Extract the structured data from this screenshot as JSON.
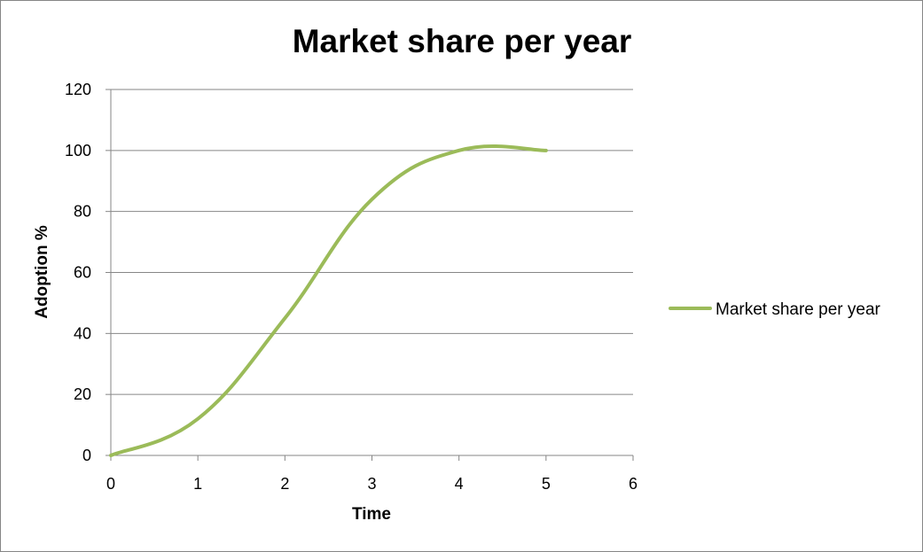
{
  "chart_data": {
    "type": "line",
    "title": "Market share per year",
    "xlabel": "Time",
    "ylabel": "Adoption %",
    "xlim": [
      0,
      6
    ],
    "ylim": [
      0,
      120
    ],
    "x_ticks": [
      "0",
      "1",
      "2",
      "3",
      "4",
      "5",
      "6"
    ],
    "y_ticks": [
      "0",
      "20",
      "40",
      "60",
      "80",
      "100",
      "120"
    ],
    "grid": "horizontal",
    "legend_position": "right",
    "series": [
      {
        "name": "Market share per year",
        "color": "#9bbb59",
        "x": [
          0,
          1,
          2,
          3,
          4,
          5
        ],
        "y": [
          0,
          12,
          45,
          84,
          100,
          100
        ]
      }
    ]
  }
}
